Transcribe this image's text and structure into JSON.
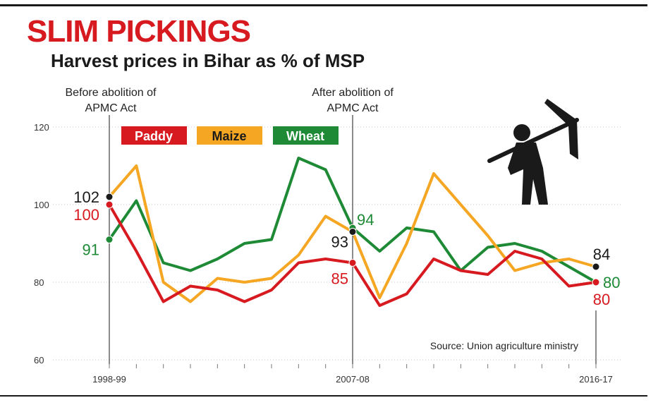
{
  "header": {
    "headline": "SLIM PICKINGS",
    "subtitle": "Harvest prices in Bihar as % of MSP"
  },
  "annotations": {
    "before_line1": "Before abolition of",
    "before_line2": "APMC Act",
    "after_line1": "After abolition of",
    "after_line2": "APMC Act"
  },
  "source": "Source: Union agriculture ministry",
  "colors": {
    "paddy": "#d71920",
    "maize": "#f5a623",
    "wheat": "#1e8a35",
    "marker_black": "#1a1a1a"
  },
  "icon": "man-with-pickaxe-icon",
  "chart_data": {
    "type": "line",
    "title": "Harvest prices in Bihar as % of MSP",
    "x_tick_labels": [
      "1998-99",
      "2007-08",
      "2016-17"
    ],
    "x": [
      1998,
      1999,
      2000,
      2001,
      2002,
      2003,
      2004,
      2005,
      2006,
      2007,
      2008,
      2009,
      2010,
      2011,
      2012,
      2013,
      2014,
      2015,
      2016
    ],
    "ylim": [
      60,
      120
    ],
    "yticks": [
      60,
      80,
      100,
      120
    ],
    "grid": true,
    "legend_position": "top-left",
    "series": [
      {
        "name": "Paddy",
        "color": "#d71920",
        "values": [
          100,
          88,
          75,
          79,
          78,
          75,
          78,
          85,
          86,
          85,
          74,
          77,
          86,
          83,
          82,
          88,
          86,
          79,
          80
        ]
      },
      {
        "name": "Maize",
        "color": "#f5a623",
        "values": [
          102,
          110,
          80,
          75,
          81,
          80,
          81,
          87,
          97,
          93,
          76,
          90,
          108,
          100,
          92,
          83,
          85,
          86,
          84
        ]
      },
      {
        "name": "Wheat",
        "color": "#1e8a35",
        "values": [
          91,
          101,
          85,
          83,
          86,
          90,
          91,
          112,
          109,
          94,
          88,
          94,
          93,
          83,
          89,
          90,
          88,
          84,
          80
        ]
      }
    ],
    "point_labels": [
      {
        "text": "102",
        "series": "Maize",
        "x": 1998,
        "value": 102
      },
      {
        "text": "100",
        "series": "Paddy",
        "x": 1998,
        "value": 100
      },
      {
        "text": "91",
        "series": "Wheat",
        "x": 1998,
        "value": 91
      },
      {
        "text": "94",
        "series": "Wheat",
        "x": 2007,
        "value": 94
      },
      {
        "text": "93",
        "series": "Maize",
        "x": 2007,
        "value": 93
      },
      {
        "text": "85",
        "series": "Paddy",
        "x": 2007,
        "value": 85
      },
      {
        "text": "84",
        "series": "Maize",
        "x": 2016,
        "value": 84
      },
      {
        "text": "80",
        "series": "Wheat",
        "x": 2016,
        "value": 80
      },
      {
        "text": "80",
        "series": "Paddy",
        "x": 2016,
        "value": 80
      }
    ]
  }
}
